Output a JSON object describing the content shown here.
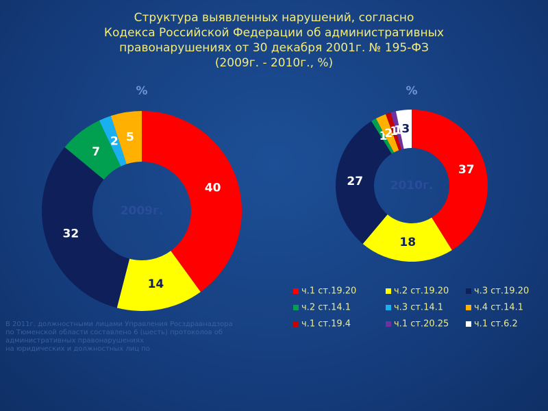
{
  "title": [
    "Структура выявленных нарушений, согласно",
    "Кодекса Российской Федерации об административных",
    "правонарушениях от 30 декабря 2001г. № 195-ФЗ",
    "(2009г. -  2010г., %)"
  ],
  "legend": {
    "categories": [
      "ч.1 ст.19.20",
      "ч.2 ст.19.20",
      "ч.3 ст.19.20",
      "ч.2 ст.14.1",
      "ч.3 ст.14.1",
      "ч.4 ст.14.1",
      "ч.1 ст.19.4",
      "ч.1 ст.20.25",
      "ч.1 ст.6.2"
    ],
    "colors": [
      "#ff0000",
      "#ffff00",
      "#0f1f5a",
      "#00a050",
      "#1ab0f0",
      "#ffb000",
      "#c80000",
      "#7030a0",
      "#ffffff"
    ]
  },
  "chart_data": [
    {
      "type": "donut",
      "unit_label": "%",
      "center_label": "2009г.",
      "values": [
        40,
        14,
        32,
        7,
        2,
        5,
        null,
        null,
        null
      ]
    },
    {
      "type": "donut",
      "unit_label": "%",
      "center_label": "2010г.",
      "values": [
        37,
        18,
        27,
        1,
        null,
        2,
        1,
        1,
        3
      ]
    }
  ],
  "note": [
    "В 2011г. должностными лицами Управления Росздравнадзора",
    "по Тюменской области составлено 6 (шесть) протоколов об",
    "административных правонарушениях",
    "на юридических и должностных лиц по"
  ]
}
